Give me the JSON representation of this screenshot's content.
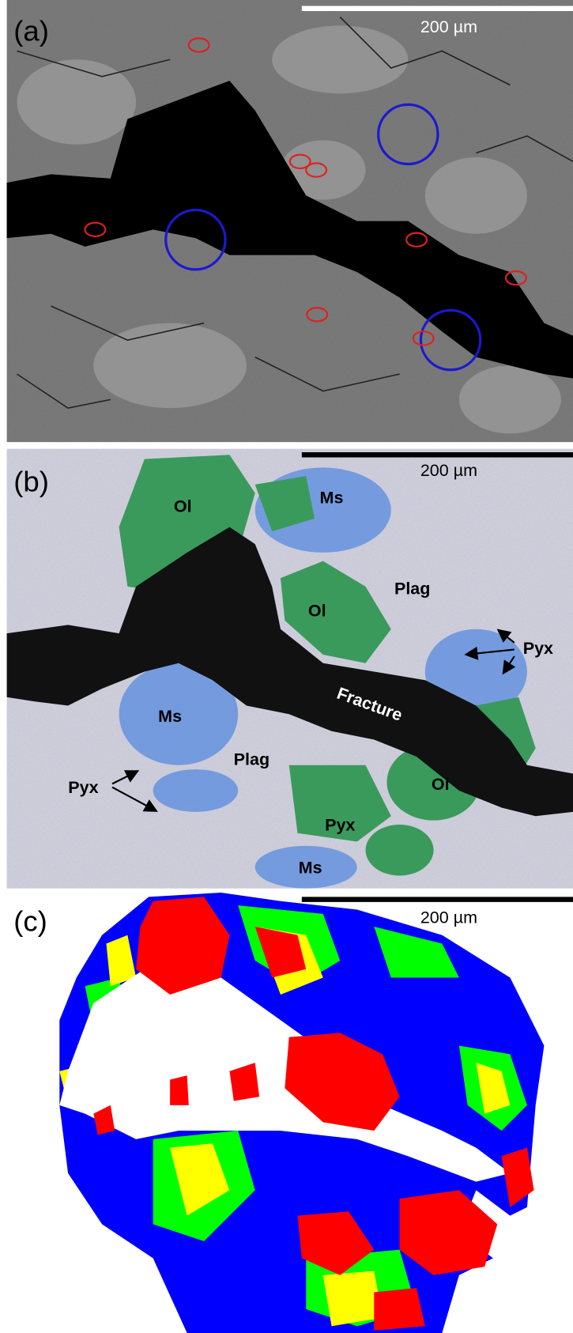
{
  "panels": [
    {
      "label": "(a)",
      "scale_bar": "200 µm"
    },
    {
      "label": "(b)",
      "scale_bar": "200 µm",
      "annotations": [
        "Ol",
        "Ms",
        "Plag",
        "Ol",
        "Pyx",
        "Fracture",
        "Ms",
        "Plag",
        "Pyx",
        "Ol",
        "Pyx",
        "Ms"
      ]
    },
    {
      "label": "(c)",
      "scale_bar": "200 µm"
    }
  ]
}
